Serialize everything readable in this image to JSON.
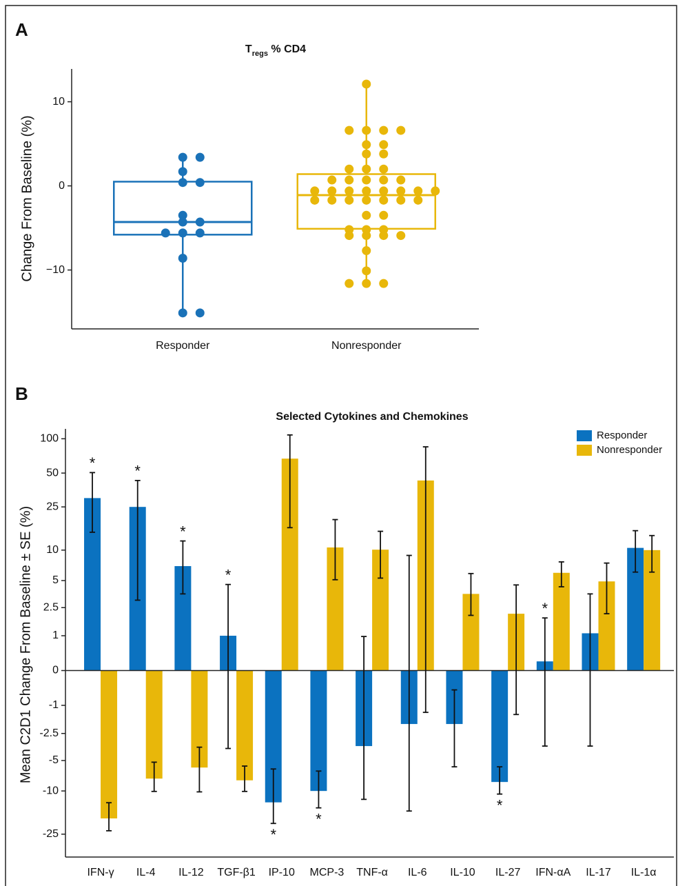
{
  "chart_data": [
    {
      "type": "box",
      "panel_label": "A",
      "title": [
        "T",
        "regs",
        " % CD4"
      ],
      "y_label": "Change From Baseline (%)",
      "categories": [
        "Responder",
        "Nonresponder"
      ],
      "colors": [
        "#1a72b8",
        "#e8b70a"
      ],
      "boxes": [
        {
          "q1": -5.8,
          "median": -4.3,
          "q3": 0.5,
          "whisker_low": -15.1,
          "whisker_high": 3.4
        },
        {
          "q1": -5.1,
          "median": -1.1,
          "q3": 1.4,
          "whisker_low": -11.6,
          "whisker_high": 12.1
        }
      ],
      "points": [
        [
          3.4,
          3.4,
          1.7,
          0.4,
          0.4,
          -3.5,
          -4.3,
          -4.3,
          -5.6,
          -5.6,
          -5.6,
          -8.6,
          -15.1,
          -15.1
        ],
        [
          12.1,
          6.6,
          6.6,
          6.6,
          6.6,
          4.9,
          4.9,
          3.8,
          3.8,
          2.0,
          2.0,
          2.0,
          0.7,
          0.7,
          0.7,
          0.7,
          0.7,
          -0.6,
          -0.6,
          -0.6,
          -0.6,
          -0.6,
          -0.6,
          -0.6,
          -0.6,
          -1.7,
          -1.7,
          -1.7,
          -1.7,
          -1.7,
          -1.7,
          -1.7,
          -3.5,
          -3.5,
          -5.2,
          -5.2,
          -5.2,
          -5.9,
          -5.9,
          -5.9,
          -5.9,
          -7.7,
          -10.1,
          -11.6,
          -11.6,
          -11.6
        ]
      ],
      "ylim": [
        -17,
        13.9
      ],
      "yticks": [
        {
          "value": -10,
          "label": "−10"
        },
        0,
        10
      ]
    },
    {
      "type": "bar",
      "panel_label": "B",
      "title": "Selected Cytokines and Chemokines",
      "y_label": "Mean C2D1 Change From Baseline ± SE (%)",
      "yscale": "symlog",
      "categories": [
        "IFN-γ",
        "IL-4",
        "IL-12",
        "TGF-β1",
        "IP-10",
        "MCP-3",
        "TNF-α",
        "IL-6",
        "IL-10",
        "IL-27",
        "IFN-αA",
        "IL-17",
        "IL-1α"
      ],
      "series": [
        {
          "name": "Responder",
          "color": "#0b72c0",
          "values": [
            30,
            25,
            7,
            1,
            -12.8,
            -10,
            -3.5,
            -1.9,
            -1.9,
            -8.2,
            0.2,
            1.1,
            10.5
          ],
          "lower": [
            14.7,
            3.06,
            3.6,
            -3.72,
            -20,
            -14.4,
            -12,
            -15.4,
            -5.8,
            -10.7,
            -3.5,
            -3.5,
            6.1
          ],
          "upper": [
            50.5,
            43,
            12.2,
            4.55,
            -6.1,
            -6.4,
            0.97,
            8.9,
            -0.47,
            -5.8,
            1.85,
            3.6,
            15.2
          ],
          "markers": [
            "*",
            "*",
            "*",
            "*",
            "*",
            "*",
            null,
            null,
            null,
            "*",
            "*",
            null,
            null
          ]
        },
        {
          "name": "Nonresponder",
          "color": "#e8b70a",
          "values": [
            -18,
            -7.6,
            -5.9,
            -7.9,
            67,
            10.6,
            10.1,
            43,
            3.6,
            2.1,
            6.0,
            4.9,
            10
          ],
          "lower": [
            -23.3,
            -10.1,
            -10.2,
            -10.1,
            16.2,
            5.1,
            5.3,
            -1.3,
            2.0,
            -1.4,
            4.3,
            2.1,
            6.1
          ],
          "upper": [
            -12.9,
            -5.2,
            -3.6,
            -5.7,
            108,
            19.2,
            15.0,
            85,
            5.9,
            4.5,
            7.7,
            7.5,
            13.7
          ]
        }
      ],
      "ylim": [
        -40,
        122
      ],
      "yticks": [
        100,
        50,
        25,
        10,
        5,
        2.5,
        1,
        0,
        -1,
        -2.5,
        -5,
        -10,
        -25
      ],
      "legend": "upper right"
    }
  ]
}
